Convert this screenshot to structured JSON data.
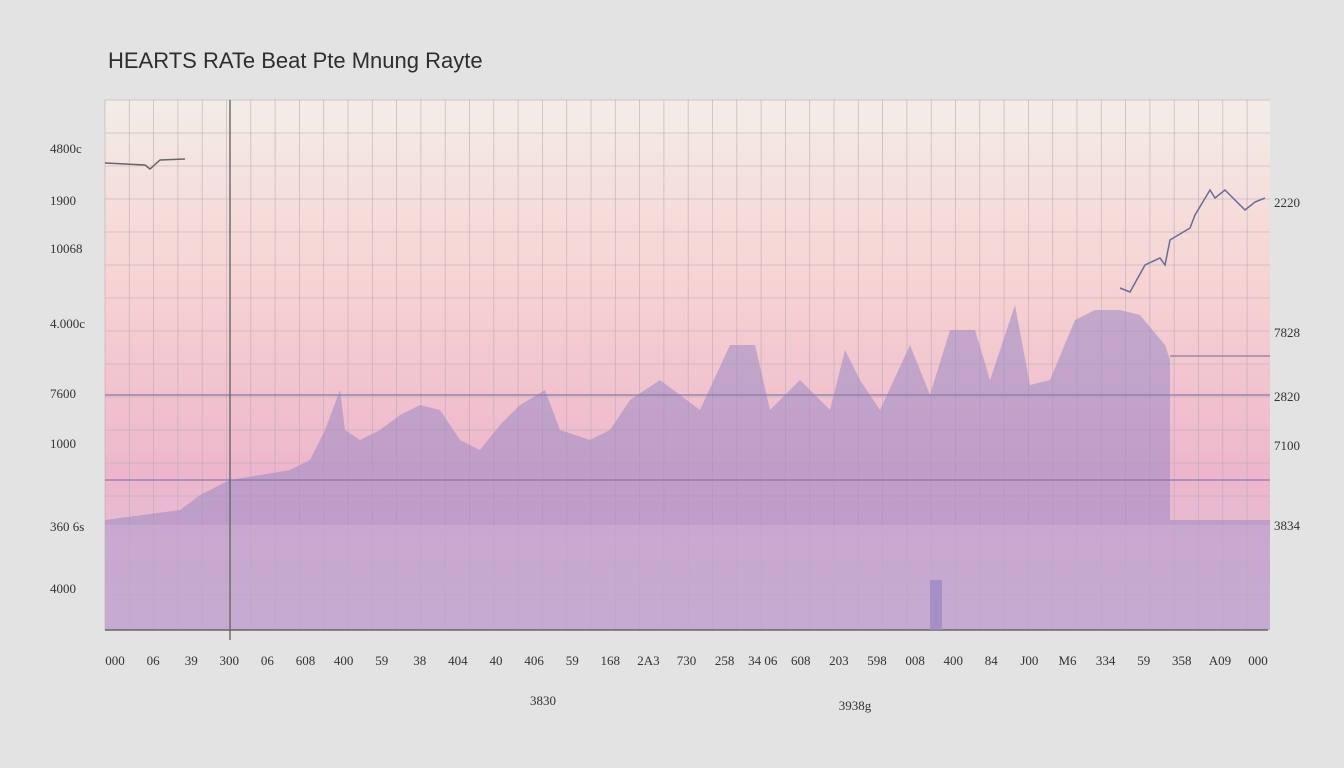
{
  "header": {
    "title": "HEARTS RATe Beat Pte Mnung Rayte"
  },
  "left_labels": [
    "4800c",
    "1900",
    "10068",
    "4.000c",
    "7600",
    "1000",
    "360 6s",
    "4000"
  ],
  "right_labels": [
    "2220",
    "7828",
    "2820",
    "7100",
    "3834"
  ],
  "bottom_labels": [
    "000",
    "06",
    "39",
    "300",
    "06",
    "608",
    "400",
    "59",
    "38",
    "404",
    "40",
    "406",
    "59",
    "168",
    "2A3",
    "730",
    "258",
    "34 06",
    "608",
    "203",
    "598",
    "008",
    "400",
    "84",
    "J00",
    "M6",
    "334",
    "59",
    "358",
    "A09",
    "000"
  ],
  "captions": [
    "3830",
    "3938g"
  ]
}
